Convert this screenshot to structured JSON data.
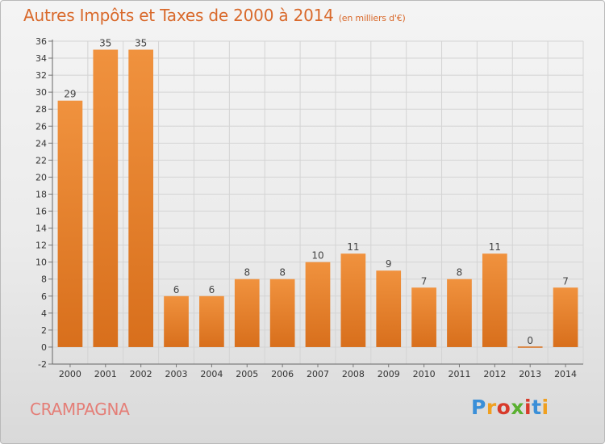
{
  "chart_data": {
    "type": "bar",
    "title": "Autres Impôts et Taxes de 2000 à 2014",
    "unit": "(en milliers d'€)",
    "categories": [
      "2000",
      "2001",
      "2002",
      "2003",
      "2004",
      "2005",
      "2006",
      "2007",
      "2008",
      "2009",
      "2010",
      "2011",
      "2012",
      "2013",
      "2014"
    ],
    "values": [
      29,
      35,
      35,
      6,
      6,
      8,
      8,
      10,
      11,
      9,
      7,
      8,
      11,
      0,
      7
    ],
    "ylim": [
      -2,
      36
    ],
    "yticks": [
      -2,
      0,
      2,
      4,
      6,
      8,
      10,
      12,
      14,
      16,
      18,
      20,
      22,
      24,
      26,
      28,
      30,
      32,
      34,
      36
    ],
    "grid": true,
    "bar_color": "#f0923e",
    "bar_dark": "#d86f1c"
  },
  "footer": {
    "commune": "CRAMPAGNA",
    "logo_text": "Proxiti",
    "logo_colors": [
      "#3a8fd8",
      "#f0a020",
      "#d83a2a",
      "#5ab030",
      "#d83a2a",
      "#3a8fd8",
      "#f0a020"
    ]
  }
}
